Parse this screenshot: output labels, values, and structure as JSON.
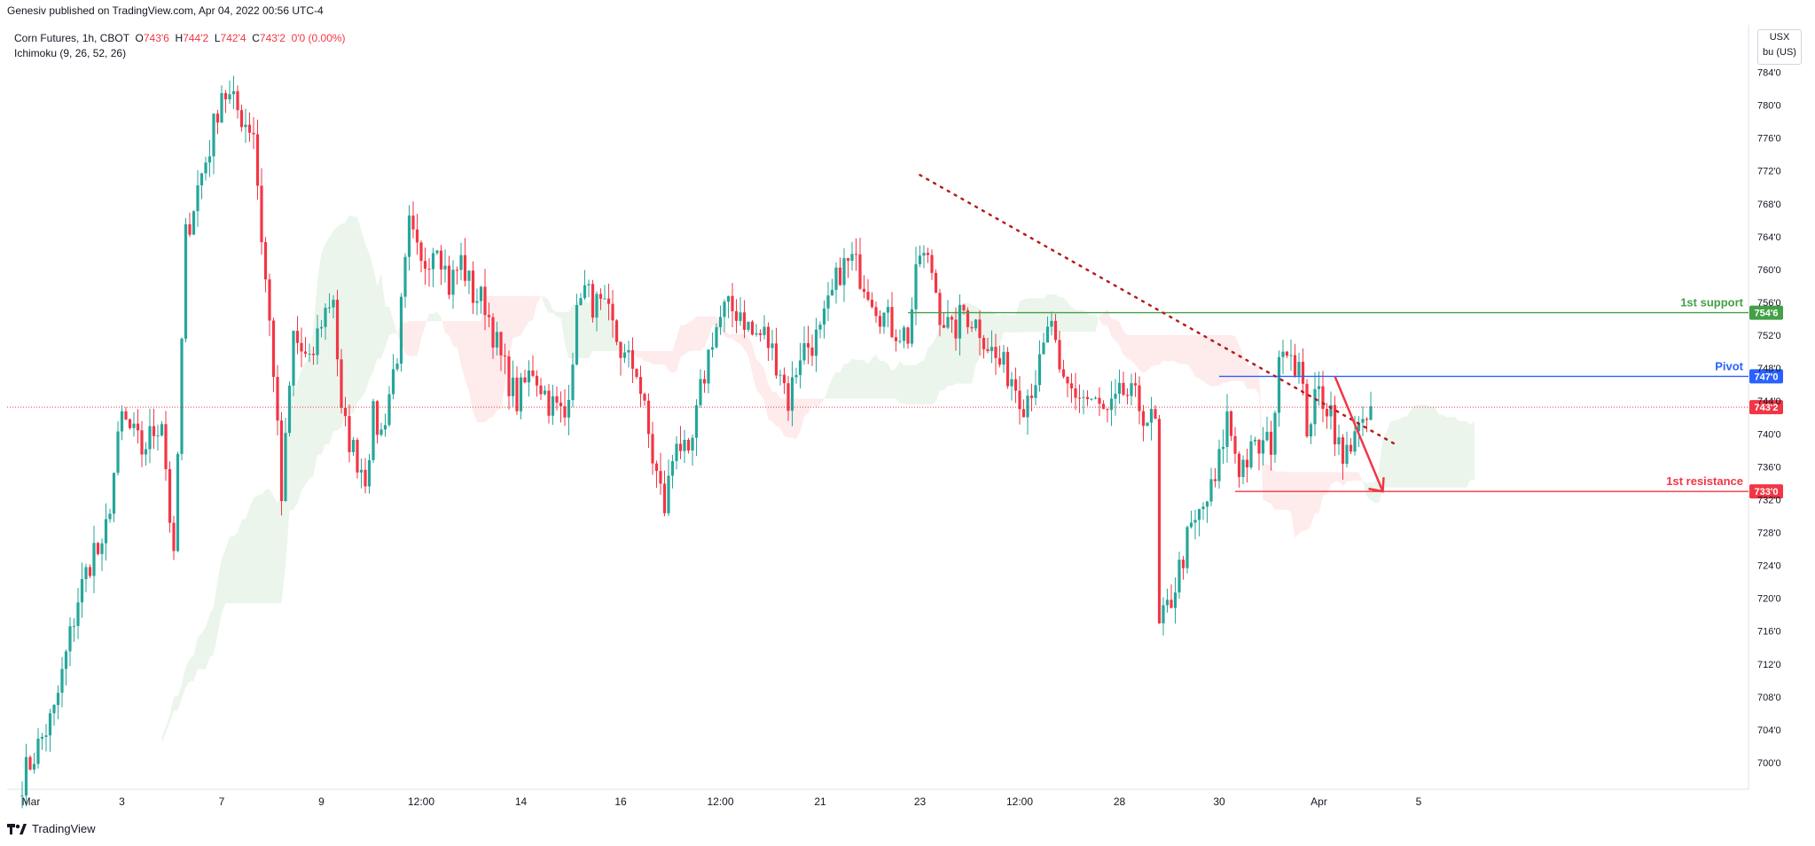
{
  "header": {
    "published": "Genesiv published on TradingView.com, Apr 04, 2022 00:56 UTC-4"
  },
  "legend": {
    "symbol": "Corn Futures, 1h, CBOT",
    "open_label": "O",
    "open": "743'6",
    "high_label": "H",
    "high": "744'2",
    "low_label": "L",
    "low": "742'4",
    "close_label": "C",
    "close": "743'2",
    "change": "0'0 (0.00%)",
    "indicator": "Ichimoku (9, 26, 52, 26)"
  },
  "unit": {
    "currency": "USX",
    "per": "bu (US)"
  },
  "footer": {
    "brand": "TradingView",
    "logo_icon": "tradingview-logo-icon"
  },
  "colors": {
    "up": "#26a69a",
    "down": "#f23645",
    "support": "#43a047",
    "pivot": "#2962ff",
    "resistance": "#f23645",
    "trend": "#b71c1c"
  },
  "chart_data": {
    "type": "candlestick",
    "title": "",
    "xlabel": "",
    "ylabel": "",
    "ylim": [
      696,
      786
    ],
    "y_ticks": [
      "700'0",
      "704'0",
      "708'0",
      "712'0",
      "716'0",
      "720'0",
      "724'0",
      "728'0",
      "732'0",
      "736'0",
      "740'0",
      "744'0",
      "748'0",
      "752'0",
      "756'0",
      "760'0",
      "764'0",
      "768'0",
      "772'0",
      "776'0",
      "780'0",
      "784'0"
    ],
    "y_tick_values": [
      700,
      704,
      708,
      712,
      716,
      720,
      724,
      728,
      732,
      736,
      740,
      744,
      748,
      752,
      756,
      760,
      764,
      768,
      772,
      776,
      780,
      784
    ],
    "x_ticks": [
      "Mar",
      "3",
      "7",
      "9",
      "12:00",
      "14",
      "16",
      "12:00",
      "21",
      "23",
      "12:00",
      "28",
      "30",
      "Apr",
      "5"
    ],
    "x_tick_index": [
      0,
      25,
      50,
      75,
      100,
      125,
      150,
      175,
      200,
      225,
      250,
      275,
      300,
      325,
      350
    ],
    "close_path": [
      [
        0,
        698
      ],
      [
        8,
        706
      ],
      [
        14,
        720
      ],
      [
        18,
        726
      ],
      [
        20,
        725
      ],
      [
        25,
        742
      ],
      [
        30,
        738
      ],
      [
        35,
        742
      ],
      [
        38,
        724
      ],
      [
        41,
        764
      ],
      [
        44,
        770
      ],
      [
        47,
        775
      ],
      [
        50,
        782
      ],
      [
        53,
        780
      ],
      [
        56,
        778
      ],
      [
        58,
        777
      ],
      [
        60,
        764
      ],
      [
        63,
        748
      ],
      [
        65,
        732
      ],
      [
        68,
        752
      ],
      [
        72,
        748
      ],
      [
        75,
        754
      ],
      [
        78,
        757
      ],
      [
        80,
        742
      ],
      [
        83,
        738
      ],
      [
        86,
        735
      ],
      [
        88,
        742
      ],
      [
        90,
        740
      ],
      [
        94,
        750
      ],
      [
        97,
        765
      ],
      [
        100,
        760
      ],
      [
        104,
        764
      ],
      [
        107,
        758
      ],
      [
        110,
        761
      ],
      [
        113,
        757
      ],
      [
        116,
        756
      ],
      [
        120,
        749
      ],
      [
        124,
        744
      ],
      [
        128,
        748
      ],
      [
        132,
        744
      ],
      [
        136,
        742
      ],
      [
        140,
        758
      ],
      [
        143,
        756
      ],
      [
        147,
        754
      ],
      [
        151,
        749
      ],
      [
        154,
        748
      ],
      [
        158,
        737
      ],
      [
        161,
        731
      ],
      [
        164,
        740
      ],
      [
        167,
        736
      ],
      [
        170,
        745
      ],
      [
        173,
        752
      ],
      [
        176,
        755
      ],
      [
        180,
        755
      ],
      [
        183,
        752
      ],
      [
        186,
        752
      ],
      [
        190,
        748
      ],
      [
        192,
        744
      ],
      [
        195,
        750
      ],
      [
        200,
        752
      ],
      [
        205,
        760
      ],
      [
        208,
        761
      ],
      [
        212,
        758
      ],
      [
        215,
        755
      ],
      [
        218,
        753
      ],
      [
        222,
        752
      ],
      [
        225,
        762
      ],
      [
        228,
        760
      ],
      [
        230,
        755
      ],
      [
        233,
        752
      ],
      [
        236,
        755
      ],
      [
        240,
        753
      ],
      [
        244,
        749
      ],
      [
        248,
        747
      ],
      [
        251,
        744
      ],
      [
        255,
        748
      ],
      [
        258,
        754
      ],
      [
        260,
        746
      ],
      [
        264,
        745
      ],
      [
        268,
        744
      ],
      [
        272,
        742
      ],
      [
        276,
        745
      ],
      [
        279,
        744
      ],
      [
        282,
        742
      ],
      [
        284,
        741
      ],
      [
        285,
        716
      ],
      [
        288,
        720
      ],
      [
        292,
        727
      ],
      [
        296,
        731
      ],
      [
        299,
        734
      ],
      [
        302,
        742
      ],
      [
        305,
        736
      ],
      [
        309,
        738
      ],
      [
        313,
        739
      ],
      [
        316,
        752
      ],
      [
        320,
        748
      ],
      [
        322,
        741
      ],
      [
        325,
        745
      ],
      [
        328,
        743
      ],
      [
        331,
        736
      ],
      [
        334,
        741
      ],
      [
        336,
        740
      ],
      [
        338,
        743
      ]
    ],
    "ichimoku_cloud": {
      "green_span": "Mar 3 – Mar 9, 12:00 (Mar 24) – Mar 27, Apr 1 – Apr 4",
      "red_span": "Mar 9 – Mar 17, Mar 28 – Mar 31, Apr 4"
    },
    "annotations": [
      {
        "label": "1st support",
        "value": "754'6",
        "level": 754.75,
        "color": "#43a047"
      },
      {
        "label": "Pivot",
        "value": "747'0",
        "level": 747.0,
        "color": "#2962ff"
      },
      {
        "label": "1st resistance",
        "value": "733'0",
        "level": 733.0,
        "color": "#f23645"
      },
      {
        "label": "",
        "value": "743'2",
        "level": 743.25,
        "color": "#f23645",
        "kind": "last-price"
      }
    ],
    "trendline": {
      "from": [
        225,
        771.5
      ],
      "to": [
        345,
        738.5
      ],
      "style": "dotted"
    },
    "forecast_arrow": {
      "from": [
        329,
        747
      ],
      "to": [
        341,
        733
      ]
    }
  }
}
